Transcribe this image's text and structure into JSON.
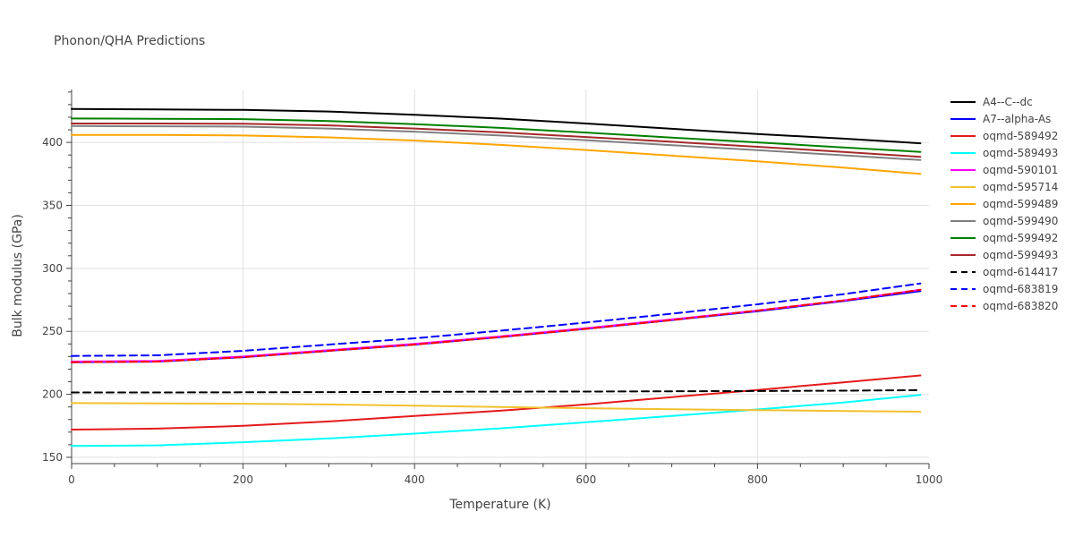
{
  "chart_data": {
    "type": "line",
    "title": "Phonon/QHA Predictions",
    "xlabel": "Temperature (K)",
    "ylabel": "Bulk modulus (GPa)",
    "xlim": [
      0,
      1000
    ],
    "ylim": [
      145,
      442
    ],
    "xticks": [
      0,
      200,
      400,
      600,
      800,
      1000
    ],
    "yticks": [
      150,
      200,
      250,
      300,
      350,
      400
    ],
    "grid": true,
    "legend_position": "right",
    "x": [
      0,
      100,
      200,
      300,
      400,
      500,
      600,
      700,
      800,
      900,
      990
    ],
    "series": [
      {
        "name": "A4--C--dc",
        "color": "#000000",
        "dash": "solid",
        "values": [
          426.5,
          426.2,
          425.8,
          424.5,
          421.9,
          418.9,
          415.0,
          410.8,
          406.7,
          403.0,
          399.3
        ]
      },
      {
        "name": "A7--alpha-As",
        "color": "#0000ff",
        "dash": "solid",
        "values": [
          225.5,
          226.0,
          229.5,
          234.5,
          239.5,
          245.5,
          252.0,
          259.0,
          266.0,
          274.0,
          282.0
        ]
      },
      {
        "name": "oqmd-589492",
        "color": "#e41a1c",
        "dash": "solid",
        "values": [
          172.0,
          172.8,
          175.0,
          178.5,
          182.8,
          187.0,
          192.0,
          197.8,
          203.5,
          209.5,
          215.0
        ]
      },
      {
        "name": "oqmd-589493",
        "color": "#00ffff",
        "dash": "solid",
        "values": [
          159.0,
          159.5,
          162.0,
          165.0,
          168.8,
          173.0,
          177.8,
          182.8,
          188.0,
          193.5,
          199.5
        ]
      },
      {
        "name": "oqmd-590101",
        "color": "#ff00ff",
        "dash": "solid",
        "values": [
          226.0,
          226.5,
          230.0,
          235.0,
          240.0,
          246.0,
          252.5,
          259.5,
          266.5,
          274.5,
          283.0
        ]
      },
      {
        "name": "oqmd-595714",
        "color": "#f2c12e",
        "dash": "solid",
        "values": [
          193.0,
          192.8,
          192.5,
          192.0,
          191.0,
          190.0,
          189.0,
          188.2,
          187.5,
          186.8,
          186.2
        ]
      },
      {
        "name": "oqmd-599489",
        "color": "#ffa500",
        "dash": "solid",
        "values": [
          406.0,
          406.0,
          405.5,
          404.0,
          401.5,
          398.0,
          394.0,
          389.5,
          385.0,
          380.0,
          375.0
        ]
      },
      {
        "name": "oqmd-599490",
        "color": "#808080",
        "dash": "solid",
        "values": [
          413.0,
          412.8,
          412.5,
          411.0,
          408.5,
          405.5,
          401.8,
          397.8,
          393.8,
          389.8,
          386.0
        ]
      },
      {
        "name": "oqmd-599492",
        "color": "#008000",
        "dash": "solid",
        "values": [
          419.0,
          418.8,
          418.5,
          417.0,
          414.5,
          411.5,
          407.8,
          403.8,
          400.0,
          396.0,
          392.5
        ]
      },
      {
        "name": "oqmd-599493",
        "color": "#a52a2a",
        "dash": "solid",
        "values": [
          415.0,
          415.0,
          414.8,
          413.5,
          411.0,
          408.0,
          404.3,
          400.5,
          396.5,
          392.5,
          388.5
        ]
      },
      {
        "name": "oqmd-614417",
        "color": "#000000",
        "dash": "dash",
        "values": [
          201.5,
          201.5,
          201.6,
          201.8,
          202.0,
          202.1,
          202.2,
          202.4,
          202.6,
          202.9,
          203.3
        ]
      },
      {
        "name": "oqmd-683819",
        "color": "#0000ff",
        "dash": "dash",
        "values": [
          230.5,
          231.0,
          234.5,
          239.5,
          244.5,
          250.5,
          257.0,
          264.0,
          271.5,
          279.5,
          288.0
        ]
      },
      {
        "name": "oqmd-683820",
        "color": "#ff0000",
        "dash": "dash",
        "values": [
          225.5,
          226.0,
          229.5,
          234.5,
          239.5,
          245.5,
          252.0,
          259.0,
          266.5,
          274.5,
          283.0
        ]
      }
    ]
  }
}
